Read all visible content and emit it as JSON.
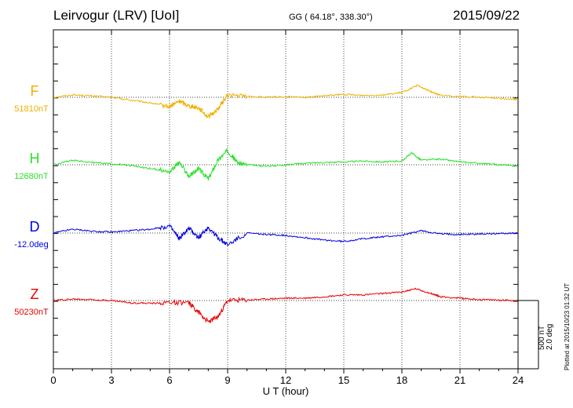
{
  "header": {
    "title": "Leirvogur (LRV)  [UoI]",
    "coords": "GG ( 64.18°, 338.30°)",
    "date": "2015/09/22"
  },
  "footer_note": "Plotted at 2015/10/23 01:32 UT",
  "scale_bar": {
    "line1": "500 nT",
    "line2": "2.0 deg"
  },
  "chart_data": {
    "type": "line",
    "xlabel": "U T (hour)",
    "xlim": [
      0,
      24
    ],
    "xticks": [
      0,
      3,
      6,
      9,
      12,
      15,
      18,
      21,
      24
    ],
    "grid": true,
    "series": [
      {
        "name": "F",
        "baseline_label": "51810nT",
        "color": "#f0b000",
        "points": [
          [
            0,
            0
          ],
          [
            1,
            5
          ],
          [
            2,
            3
          ],
          [
            3,
            0
          ],
          [
            4,
            -6
          ],
          [
            5,
            -12
          ],
          [
            6,
            -20
          ],
          [
            6.5,
            -8
          ],
          [
            7,
            -18
          ],
          [
            7.5,
            -22
          ],
          [
            8,
            -42
          ],
          [
            8.5,
            -25
          ],
          [
            9,
            5
          ],
          [
            10,
            2
          ],
          [
            11,
            0
          ],
          [
            12,
            1
          ],
          [
            13,
            0
          ],
          [
            14,
            3
          ],
          [
            15,
            6
          ],
          [
            16,
            4
          ],
          [
            17,
            5
          ],
          [
            18,
            10
          ],
          [
            18.8,
            25
          ],
          [
            19.5,
            12
          ],
          [
            20,
            4
          ],
          [
            21,
            2
          ],
          [
            22,
            0
          ],
          [
            23,
            -2
          ],
          [
            24,
            -5
          ]
        ]
      },
      {
        "name": "H",
        "baseline_label": "12680nT",
        "color": "#2ae02a",
        "points": [
          [
            0,
            0
          ],
          [
            1,
            10
          ],
          [
            2,
            5
          ],
          [
            3,
            2
          ],
          [
            4,
            -2
          ],
          [
            5,
            -8
          ],
          [
            6,
            -15
          ],
          [
            6.5,
            5
          ],
          [
            7,
            -25
          ],
          [
            7.5,
            -8
          ],
          [
            8,
            -30
          ],
          [
            8.5,
            10
          ],
          [
            9,
            30
          ],
          [
            9.5,
            5
          ],
          [
            10,
            0
          ],
          [
            11,
            -3
          ],
          [
            12,
            0
          ],
          [
            13,
            3
          ],
          [
            14,
            5
          ],
          [
            15,
            6
          ],
          [
            16,
            8
          ],
          [
            17,
            6
          ],
          [
            18,
            8
          ],
          [
            18.5,
            25
          ],
          [
            19,
            10
          ],
          [
            20,
            12
          ],
          [
            21,
            6
          ],
          [
            22,
            3
          ],
          [
            23,
            0
          ],
          [
            24,
            -3
          ]
        ]
      },
      {
        "name": "D",
        "baseline_label": "-12.0deg",
        "color": "#0000e0",
        "points": [
          [
            0,
            0
          ],
          [
            1,
            8
          ],
          [
            2,
            4
          ],
          [
            3,
            2
          ],
          [
            4,
            5
          ],
          [
            5,
            8
          ],
          [
            6,
            15
          ],
          [
            6.5,
            -12
          ],
          [
            7,
            10
          ],
          [
            7.5,
            -10
          ],
          [
            8,
            12
          ],
          [
            8.5,
            -10
          ],
          [
            9,
            -25
          ],
          [
            10,
            0
          ],
          [
            11,
            -3
          ],
          [
            12,
            -5
          ],
          [
            13,
            -10
          ],
          [
            14,
            -15
          ],
          [
            15,
            -18
          ],
          [
            16,
            -12
          ],
          [
            17,
            -8
          ],
          [
            18,
            -5
          ],
          [
            19,
            5
          ],
          [
            20,
            -2
          ],
          [
            21,
            -3
          ],
          [
            22,
            -2
          ],
          [
            23,
            -1
          ],
          [
            24,
            0
          ]
        ]
      },
      {
        "name": "Z",
        "baseline_label": "50230nT",
        "color": "#e80000",
        "points": [
          [
            0,
            0
          ],
          [
            1,
            3
          ],
          [
            2,
            2
          ],
          [
            3,
            0
          ],
          [
            4,
            -5
          ],
          [
            5,
            -6
          ],
          [
            6,
            -4
          ],
          [
            7,
            -5
          ],
          [
            7.5,
            -25
          ],
          [
            8,
            -45
          ],
          [
            8.5,
            -35
          ],
          [
            9,
            0
          ],
          [
            10,
            1
          ],
          [
            11,
            3
          ],
          [
            12,
            5
          ],
          [
            13,
            5
          ],
          [
            14,
            8
          ],
          [
            15,
            12
          ],
          [
            16,
            12
          ],
          [
            17,
            15
          ],
          [
            18,
            18
          ],
          [
            18.7,
            25
          ],
          [
            19.5,
            15
          ],
          [
            20,
            8
          ],
          [
            21,
            5
          ],
          [
            22,
            2
          ],
          [
            23,
            1
          ],
          [
            24,
            0
          ]
        ]
      }
    ]
  }
}
